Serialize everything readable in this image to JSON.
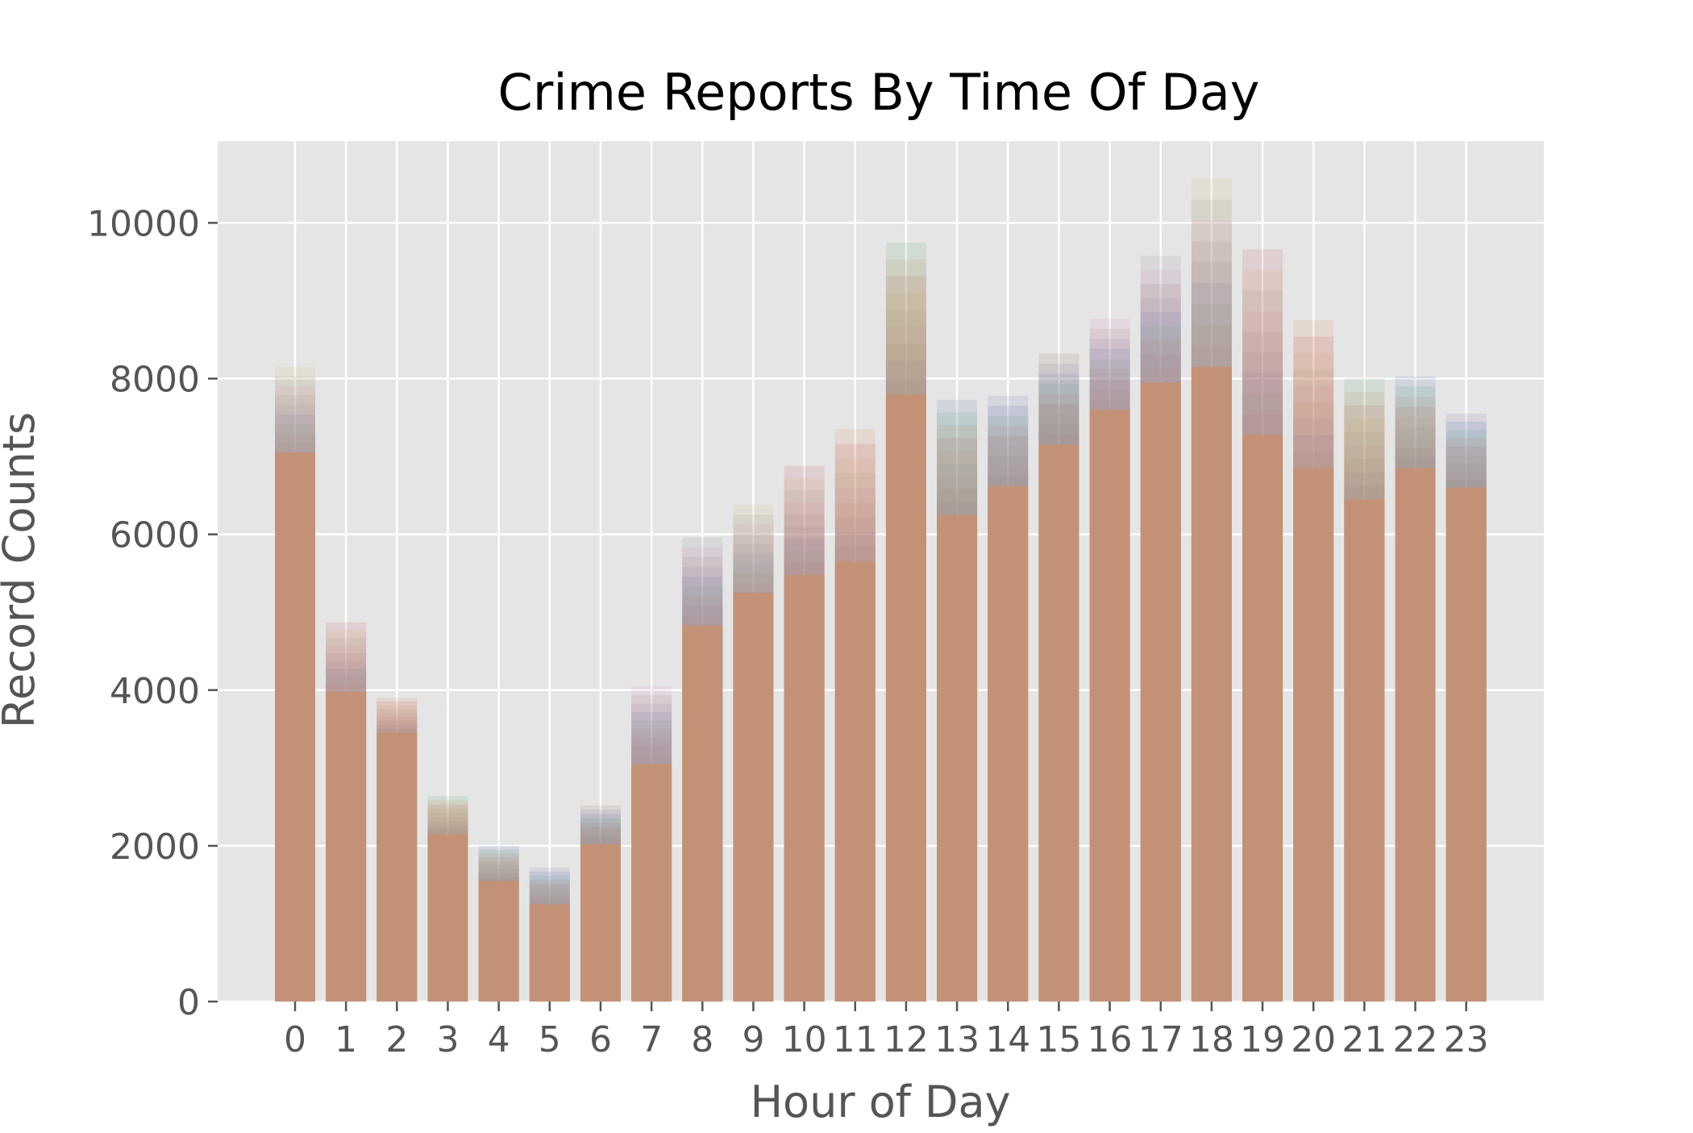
{
  "chart_data": {
    "type": "bar",
    "title": "Crime Reports By Time Of Day",
    "xlabel": "Hour of Day",
    "ylabel": "Record Counts",
    "ylim": [
      0,
      11050
    ],
    "yticks": [
      0,
      2000,
      4000,
      6000,
      8000,
      10000
    ],
    "grid": true,
    "categories": [
      "0",
      "1",
      "2",
      "3",
      "4",
      "5",
      "6",
      "7",
      "8",
      "9",
      "10",
      "11",
      "12",
      "13",
      "14",
      "15",
      "16",
      "17",
      "18",
      "19",
      "20",
      "21",
      "22",
      "23"
    ],
    "overlay_colors": [
      "#c44e52",
      "#dd8452",
      "#55a868",
      "#4c72b0",
      "#8172b2",
      "#937860",
      "#da8bc3",
      "#8c8c8c",
      "#ccb974"
    ],
    "base_values": [
      7050,
      3980,
      3450,
      2150,
      1550,
      1250,
      2020,
      3050,
      4830,
      5250,
      5480,
      5650,
      7800,
      6250,
      6620,
      7150,
      7600,
      7950,
      8150,
      7280,
      6850,
      6450,
      6850,
      6600
    ],
    "values": [
      8150,
      4870,
      3900,
      2640,
      2000,
      1720,
      2520,
      4050,
      5960,
      6380,
      6880,
      7350,
      9750,
      7730,
      7780,
      8320,
      8770,
      9580,
      10570,
      9660,
      8750,
      8000,
      8030,
      7550
    ],
    "bar_color": "#c39276",
    "plot_background": "#e5e5e5",
    "grid_color": "#ffffff"
  }
}
